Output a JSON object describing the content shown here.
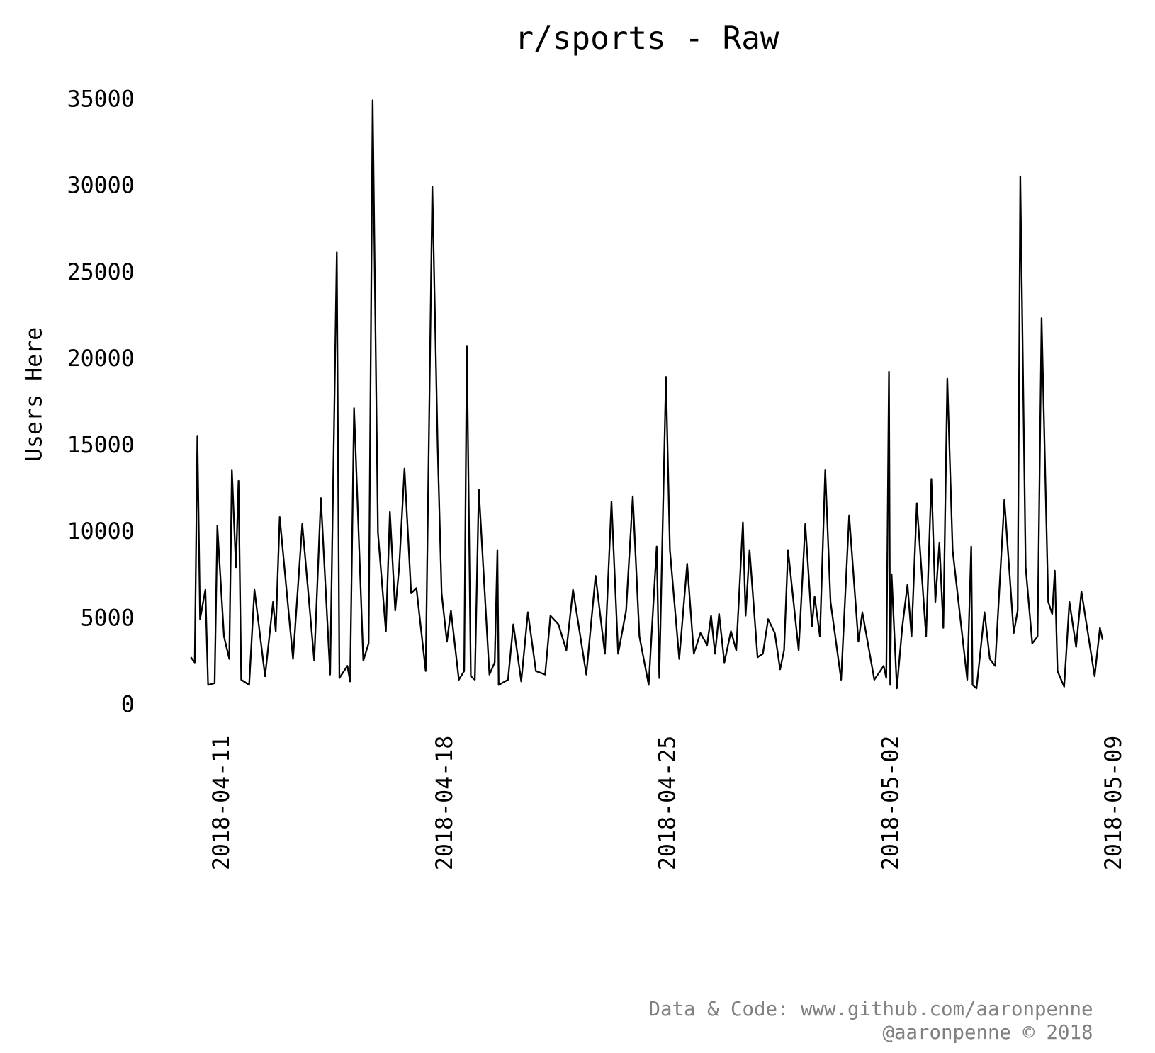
{
  "chart_data": {
    "type": "line",
    "title": "r/sports - Raw",
    "y_label": "Users Here",
    "annotations": [
      "Data & Code: www.github.com/aaronpenne",
      "@aaronpenne © 2018"
    ],
    "grid": false,
    "xlim": [
      "2018-04-08T12:00Z",
      "2018-05-10T01:00Z"
    ],
    "xticks": [
      "2018-04-11",
      "2018-04-18",
      "2018-04-25",
      "2018-05-02",
      "2018-05-09"
    ],
    "ylim": [
      -700,
      36700
    ],
    "yticks": [
      0,
      5000,
      10000,
      15000,
      20000,
      25000,
      30000,
      35000
    ],
    "x": [
      "2018-04-10T00:00Z",
      "2018-04-10T03:00Z",
      "2018-04-10T05:00Z",
      "2018-04-10T07:00Z",
      "2018-04-10T11:00Z",
      "2018-04-10T13:00Z",
      "2018-04-10T18:00Z",
      "2018-04-10T20:00Z",
      "2018-04-11T01:00Z",
      "2018-04-11T05:00Z",
      "2018-04-11T07:00Z",
      "2018-04-11T10:00Z",
      "2018-04-11T12:00Z",
      "2018-04-11T14:00Z",
      "2018-04-11T20:00Z",
      "2018-04-12T00:00Z",
      "2018-04-12T08:00Z",
      "2018-04-12T14:00Z",
      "2018-04-12T16:00Z",
      "2018-04-12T19:00Z",
      "2018-04-13T05:00Z",
      "2018-04-13T12:00Z",
      "2018-04-13T21:00Z",
      "2018-04-14T02:00Z",
      "2018-04-14T09:00Z",
      "2018-04-14T14:00Z",
      "2018-04-14T16:00Z",
      "2018-04-14T22:00Z",
      "2018-04-15T00:00Z",
      "2018-04-15T03:00Z",
      "2018-04-15T10:00Z",
      "2018-04-15T14:00Z",
      "2018-04-15T17:00Z",
      "2018-04-15T21:00Z",
      "2018-04-16T03:00Z",
      "2018-04-16T06:00Z",
      "2018-04-16T10:00Z",
      "2018-04-16T13:00Z",
      "2018-04-16T17:00Z",
      "2018-04-16T22:00Z",
      "2018-04-17T02:00Z",
      "2018-04-17T09:00Z",
      "2018-04-17T14:00Z",
      "2018-04-17T18:00Z",
      "2018-04-17T21:00Z",
      "2018-04-18T01:00Z",
      "2018-04-18T04:00Z",
      "2018-04-18T10:00Z",
      "2018-04-18T14:00Z",
      "2018-04-18T16:00Z",
      "2018-04-18T19:00Z",
      "2018-04-18T22:00Z",
      "2018-04-19T01:00Z",
      "2018-04-19T09:00Z",
      "2018-04-19T13:00Z",
      "2018-04-19T15:00Z",
      "2018-04-19T16:00Z",
      "2018-04-19T23:00Z",
      "2018-04-20T03:00Z",
      "2018-04-20T09:00Z",
      "2018-04-20T14:00Z",
      "2018-04-20T20:00Z",
      "2018-04-21T03:00Z",
      "2018-04-21T07:00Z",
      "2018-04-21T13:00Z",
      "2018-04-21T19:00Z",
      "2018-04-22T00:00Z",
      "2018-04-22T10:00Z",
      "2018-04-22T17:00Z",
      "2018-04-23T00:00Z",
      "2018-04-23T05:00Z",
      "2018-04-23T10:00Z",
      "2018-04-23T16:00Z",
      "2018-04-23T21:00Z",
      "2018-04-24T02:00Z",
      "2018-04-24T09:00Z",
      "2018-04-24T15:00Z",
      "2018-04-24T17:00Z",
      "2018-04-24T22:00Z",
      "2018-04-25T01:00Z",
      "2018-04-25T08:00Z",
      "2018-04-25T14:00Z",
      "2018-04-25T19:00Z",
      "2018-04-26T00:00Z",
      "2018-04-26T05:00Z",
      "2018-04-26T08:00Z",
      "2018-04-26T11:00Z",
      "2018-04-26T14:00Z",
      "2018-04-26T18:00Z",
      "2018-04-26T23:00Z",
      "2018-04-27T03:00Z",
      "2018-04-27T08:00Z",
      "2018-04-27T10:00Z",
      "2018-04-27T13:00Z",
      "2018-04-27T19:00Z",
      "2018-04-27T23:00Z",
      "2018-04-28T03:00Z",
      "2018-04-28T08:00Z",
      "2018-04-28T12:00Z",
      "2018-04-28T15:00Z",
      "2018-04-28T18:00Z",
      "2018-04-29T02:00Z",
      "2018-04-29T07:00Z",
      "2018-04-29T12:00Z",
      "2018-04-29T14:00Z",
      "2018-04-29T18:00Z",
      "2018-04-29T22:00Z",
      "2018-04-30T02:00Z",
      "2018-04-30T10:00Z",
      "2018-04-30T16:00Z",
      "2018-04-30T23:00Z",
      "2018-05-01T02:00Z",
      "2018-05-01T11:00Z",
      "2018-05-01T18:00Z",
      "2018-05-01T20:00Z",
      "2018-05-01T22:00Z",
      "2018-05-01T23:00Z",
      "2018-05-02T00:00Z",
      "2018-05-02T04:00Z",
      "2018-05-02T08:00Z",
      "2018-05-02T12:00Z",
      "2018-05-02T15:00Z",
      "2018-05-02T19:00Z",
      "2018-05-03T02:00Z",
      "2018-05-03T06:00Z",
      "2018-05-03T09:00Z",
      "2018-05-03T12:00Z",
      "2018-05-03T15:00Z",
      "2018-05-03T18:00Z",
      "2018-05-03T22:00Z",
      "2018-05-04T09:00Z",
      "2018-05-04T12:00Z",
      "2018-05-04T13:00Z",
      "2018-05-04T16:00Z",
      "2018-05-04T22:00Z",
      "2018-05-05T02:00Z",
      "2018-05-05T06:00Z",
      "2018-05-05T13:00Z",
      "2018-05-05T20:00Z",
      "2018-05-05T23:00Z",
      "2018-05-06T01:00Z",
      "2018-05-06T05:00Z",
      "2018-05-06T10:00Z",
      "2018-05-06T14:00Z",
      "2018-05-06T17:00Z",
      "2018-05-06T22:00Z",
      "2018-05-07T01:00Z",
      "2018-05-07T03:00Z",
      "2018-05-07T05:00Z",
      "2018-05-07T10:00Z",
      "2018-05-07T14:00Z",
      "2018-05-07T19:00Z",
      "2018-05-07T23:00Z",
      "2018-05-08T09:00Z",
      "2018-05-08T13:00Z",
      "2018-05-08T15:00Z"
    ],
    "series": [
      {
        "name": "Users Here",
        "color": "#000000",
        "values": [
          2800,
          2500,
          15600,
          5000,
          6700,
          1200,
          1300,
          10400,
          4000,
          2700,
          13600,
          8000,
          13000,
          1500,
          1200,
          6700,
          1700,
          6000,
          4300,
          10900,
          2700,
          10500,
          2600,
          12000,
          1800,
          26200,
          1600,
          2300,
          1400,
          17200,
          2600,
          3600,
          35000,
          10000,
          4300,
          11200,
          5500,
          8000,
          13700,
          6500,
          6800,
          2000,
          30000,
          15000,
          6500,
          3700,
          5500,
          1500,
          2000,
          20800,
          1700,
          1500,
          12500,
          1800,
          2500,
          9000,
          1200,
          1500,
          4700,
          1400,
          5400,
          2000,
          1800,
          5200,
          4700,
          3200,
          6700,
          1800,
          7500,
          3000,
          11800,
          3000,
          5500,
          12100,
          4000,
          1200,
          9200,
          1600,
          19000,
          9000,
          2700,
          8200,
          3000,
          4200,
          3500,
          5200,
          3000,
          5300,
          2500,
          4300,
          3200,
          10600,
          5200,
          9000,
          2800,
          3000,
          5000,
          4200,
          2100,
          3200,
          9000,
          3200,
          10500,
          4600,
          6300,
          4000,
          13600,
          6000,
          1500,
          11000,
          3700,
          5400,
          1500,
          2300,
          1600,
          19300,
          1200,
          7600,
          1000,
          4500,
          7000,
          4000,
          11700,
          4000,
          13100,
          6000,
          9400,
          4500,
          18900,
          9000,
          1500,
          9200,
          1200,
          1000,
          5400,
          2700,
          2300,
          11900,
          4200,
          5500,
          30600,
          8000,
          3600,
          4000,
          22400,
          6000,
          5300,
          7800,
          2000,
          1100,
          6000,
          3400,
          6600,
          1700,
          4500,
          3800
        ]
      }
    ]
  }
}
